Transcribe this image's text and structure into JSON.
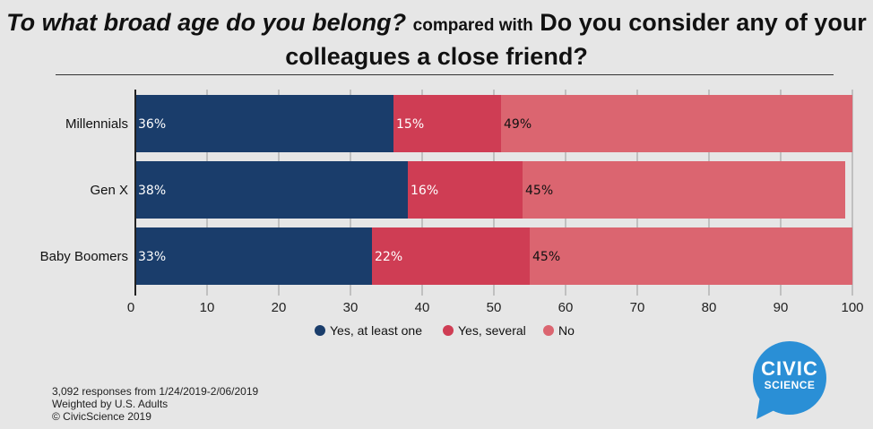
{
  "title": {
    "question1": "To what broad age do you belong?",
    "connector": "compared with",
    "question2": "Do you consider any of your colleagues a close friend?"
  },
  "chart_data": {
    "type": "bar",
    "orientation": "horizontal",
    "stacked": true,
    "categories": [
      "Millennials",
      "Gen X",
      "Baby Boomers"
    ],
    "series": [
      {
        "name": "Yes, at least one",
        "color": "#1a3d6b",
        "values": [
          36,
          38,
          33
        ],
        "labels": [
          "36%",
          "38%",
          "33%"
        ]
      },
      {
        "name": "Yes, several",
        "color": "#cf3d54",
        "values": [
          15,
          16,
          22
        ],
        "labels": [
          "15%",
          "16%",
          "22%"
        ]
      },
      {
        "name": "No",
        "color": "#db6570",
        "values": [
          49,
          45,
          45
        ],
        "labels": [
          "49%",
          "45%",
          "45%"
        ]
      }
    ],
    "xlim": [
      0,
      100
    ],
    "xticks": [
      0,
      10,
      20,
      30,
      40,
      50,
      60,
      70,
      80,
      90,
      100
    ],
    "legend_position": "bottom"
  },
  "footnote": {
    "line1": "3,092 responses from 1/24/2019-2/06/2019",
    "line2": "Weighted by U.S. Adults",
    "line3": "© CivicScience 2019"
  },
  "logo": {
    "line1": "CIVIC",
    "line2": "SCIENCE",
    "color": "#2a8fd6"
  }
}
